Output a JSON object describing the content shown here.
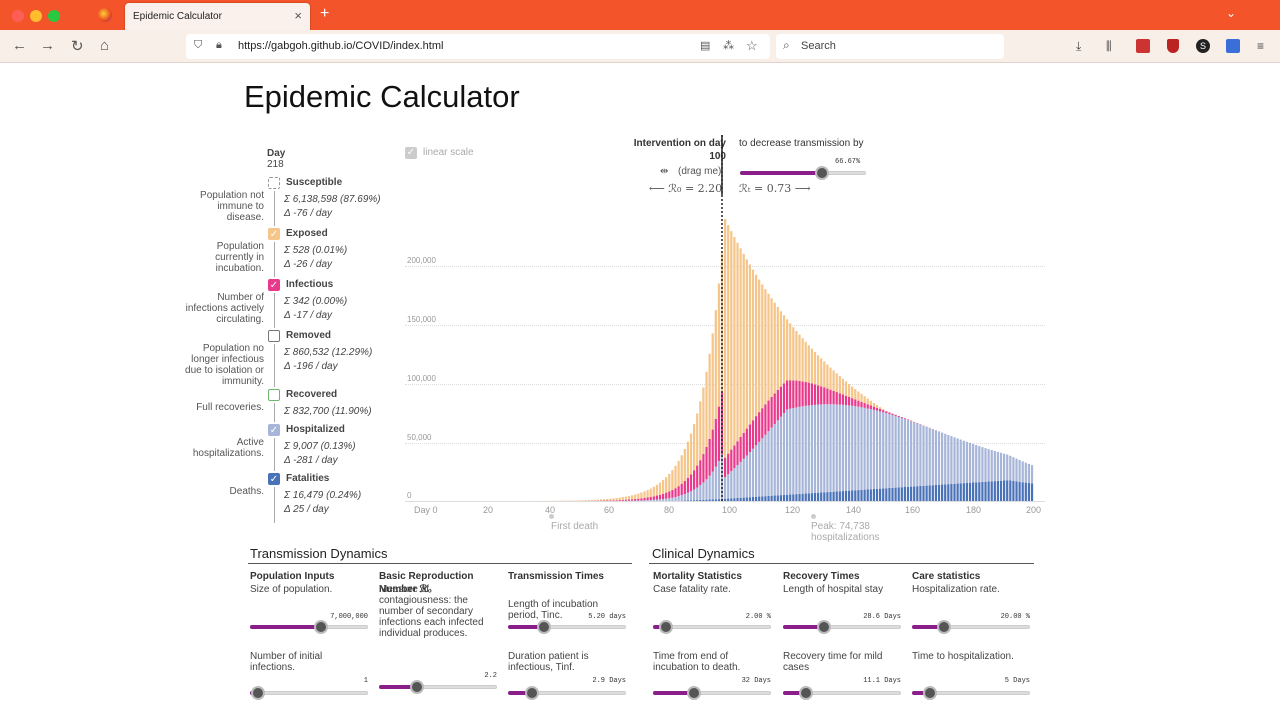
{
  "browser": {
    "tab_title": "Epidemic Calculator",
    "url": "https://gabgoh.github.io/COVID/index.html",
    "search_placeholder": "Search"
  },
  "page": {
    "title": "Epidemic Calculator"
  },
  "legend": {
    "day_label": "Day",
    "day_value": "218",
    "items": [
      {
        "name": "Susceptible",
        "desc": "Population not immune to disease.",
        "sum": "6,138,598 (87.69%)",
        "delta": "-76 / day",
        "color": "#cccccc",
        "checked": false
      },
      {
        "name": "Exposed",
        "desc": "Population currently in incubation.",
        "sum": "528 (0.01%)",
        "delta": "-26 / day",
        "color": "#f5c58a",
        "checked": true
      },
      {
        "name": "Infectious",
        "desc": "Number of infections actively circulating.",
        "sum": "342 (0.00%)",
        "delta": "-17 / day",
        "color": "#e8398a",
        "checked": true
      },
      {
        "name": "Removed",
        "desc": "Population no longer infectious due to isolation or immunity.",
        "sum": "860,532 (12.29%)",
        "delta": "-196 / day",
        "color": "#777777",
        "checked": false
      },
      {
        "name": "Recovered",
        "desc": "Full recoveries.",
        "sum": "832,700 (11.90%)",
        "delta": "",
        "color": "#6fb56f",
        "checked": false
      },
      {
        "name": "Hospitalized",
        "desc": "Active hospitalizations.",
        "sum": "9,007 (0.13%)",
        "delta": "-281 / day",
        "color": "#a7b6d8",
        "checked": true
      },
      {
        "name": "Fatalities",
        "desc": "Deaths.",
        "sum": "16,479 (0.24%)",
        "delta": "25 / day",
        "color": "#4a72b8",
        "checked": true
      }
    ]
  },
  "chart_controls": {
    "linear_scale": "linear scale",
    "intervention_label": "Intervention on day",
    "intervention_day": "100",
    "drag_hint": "(drag me)",
    "decrease_label": "to decrease transmission by",
    "decrease_value": "66.67%",
    "r0_label": "⟵ ℛ₀ = 2.20",
    "rt_label": "ℛₜ = 0.73 ⟶",
    "first_death": "First death",
    "peak_label": "Peak: 74,738 hospitalizations"
  },
  "chart_data": {
    "type": "bar",
    "xlabel": "",
    "ylabel": "",
    "xlim": [
      0,
      200
    ],
    "ylim": [
      0,
      200000
    ],
    "x_ticks": [
      "Day 0",
      "20",
      "40",
      "60",
      "80",
      "100",
      "120",
      "140",
      "160",
      "180",
      "200"
    ],
    "y_ticks": [
      "0",
      "50,000",
      "100,000",
      "150,000",
      "200,000"
    ],
    "intervention_day": 100,
    "peak_day": 101,
    "peak_total": 240000,
    "series": [
      {
        "name": "Fatalities",
        "color": "#4a72b8"
      },
      {
        "name": "Hospitalized",
        "color": "#a7b6d8"
      },
      {
        "name": "Infectious",
        "color": "#e8398a"
      },
      {
        "name": "Exposed",
        "color": "#f5c58a"
      }
    ]
  },
  "sections": {
    "transmission": "Transmission Dynamics",
    "clinical": "Clinical Dynamics"
  },
  "params": [
    {
      "head": "Population Inputs",
      "desc": "Size of population.",
      "value": "7,000,000",
      "frac": 0.55
    },
    {
      "head": "",
      "desc": "Number of initial infections.",
      "value": "1",
      "frac": 0.02
    },
    {
      "head": "Basic Reproduction Number ℛ₀",
      "desc": "Measure of contagiousness: the number of secondary infections each infected individual produces.",
      "value": "",
      "frac": 0
    },
    {
      "head": "",
      "desc": "",
      "value": "2.2",
      "frac": 0.27
    },
    {
      "head": "Transmission Times",
      "desc": "Length of incubation period, Tinc.",
      "value": "5.20 days",
      "frac": 0.25
    },
    {
      "head": "",
      "desc": "Duration patient is infectious, Tinf.",
      "value": "2.9 Days",
      "frac": 0.15
    },
    {
      "head": "Mortality Statistics",
      "desc": "Case fatality rate.",
      "value": "2.00 %",
      "frac": 0.06
    },
    {
      "head": "",
      "desc": "Time from end of incubation to death.",
      "value": "32 Days",
      "frac": 0.3
    },
    {
      "head": "Recovery Times",
      "desc": "Length of hospital stay",
      "value": "28.6 Days",
      "frac": 0.3
    },
    {
      "head": "",
      "desc": "Recovery time for mild cases",
      "value": "11.1 Days",
      "frac": 0.14
    },
    {
      "head": "Care statistics",
      "desc": "Hospitalization rate.",
      "value": "20.00 %",
      "frac": 0.22
    },
    {
      "head": "",
      "desc": "Time to hospitalization.",
      "value": "5 Days",
      "frac": 0.1
    }
  ]
}
